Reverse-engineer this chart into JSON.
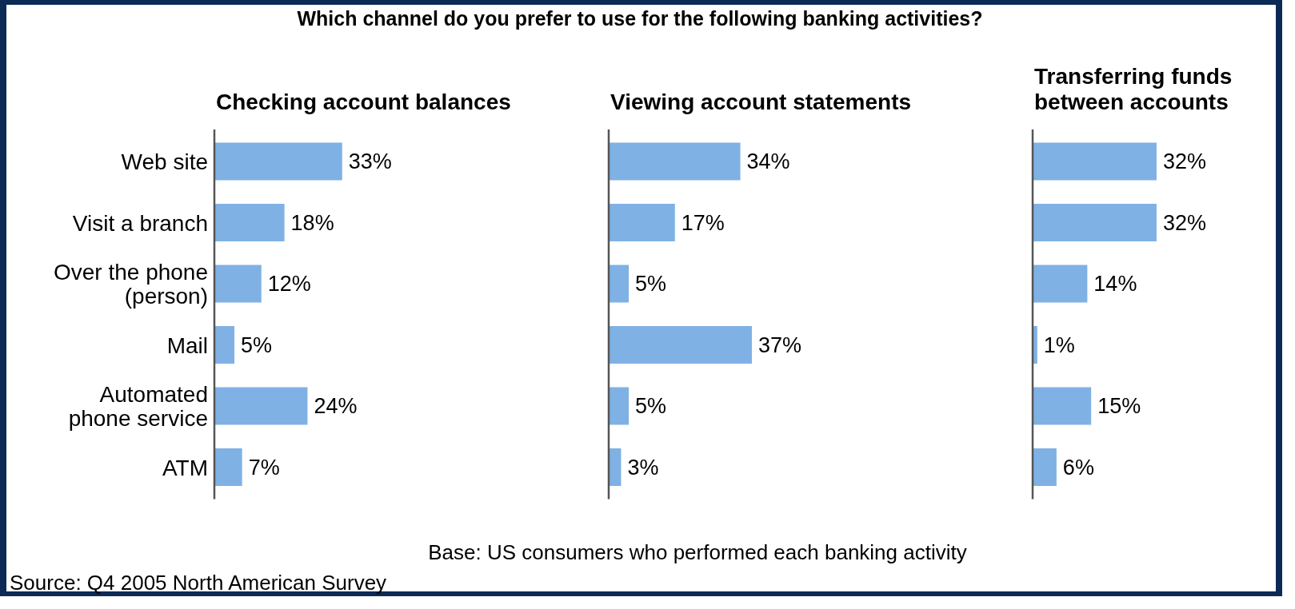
{
  "chart_data": [
    {
      "type": "bar",
      "orientation": "horizontal",
      "title": "Which channel do you prefer to use for the following banking activities?",
      "subtitle": "Checking account balances",
      "categories": [
        "Web site",
        "Visit a branch",
        "Over the phone (person)",
        "Mail",
        "Automated phone service",
        "ATM"
      ],
      "color": "#7fb1e4",
      "values": [
        33,
        18,
        12,
        5,
        24,
        7
      ],
      "value_labels": [
        "33%",
        "18%",
        "12%",
        "5%",
        "24%",
        "7%"
      ],
      "annotations": [
        "Base: US consumers who performed each banking activity",
        "Source: Q4 2005 North American Survey"
      ]
    },
    {
      "type": "bar",
      "orientation": "horizontal",
      "subtitle": "Viewing account statements",
      "categories": [
        null,
        null,
        null,
        null,
        null,
        null
      ],
      "color": "#7fb1e4",
      "values": [
        34,
        17,
        5,
        37,
        5,
        3
      ],
      "value_labels": [
        "34%",
        "17%",
        "5%",
        "37%",
        "5%",
        "3%"
      ]
    },
    {
      "type": "bar",
      "orientation": "horizontal",
      "subtitle": "Transferring funds between accounts",
      "categories": [
        null,
        null,
        null,
        null,
        null,
        null
      ],
      "color": "#7fb1e4",
      "values": [
        32,
        32,
        14,
        1,
        15,
        6
      ],
      "value_labels": [
        "32%",
        "32%",
        "14%",
        "1%",
        "15%",
        "6%"
      ]
    }
  ]
}
